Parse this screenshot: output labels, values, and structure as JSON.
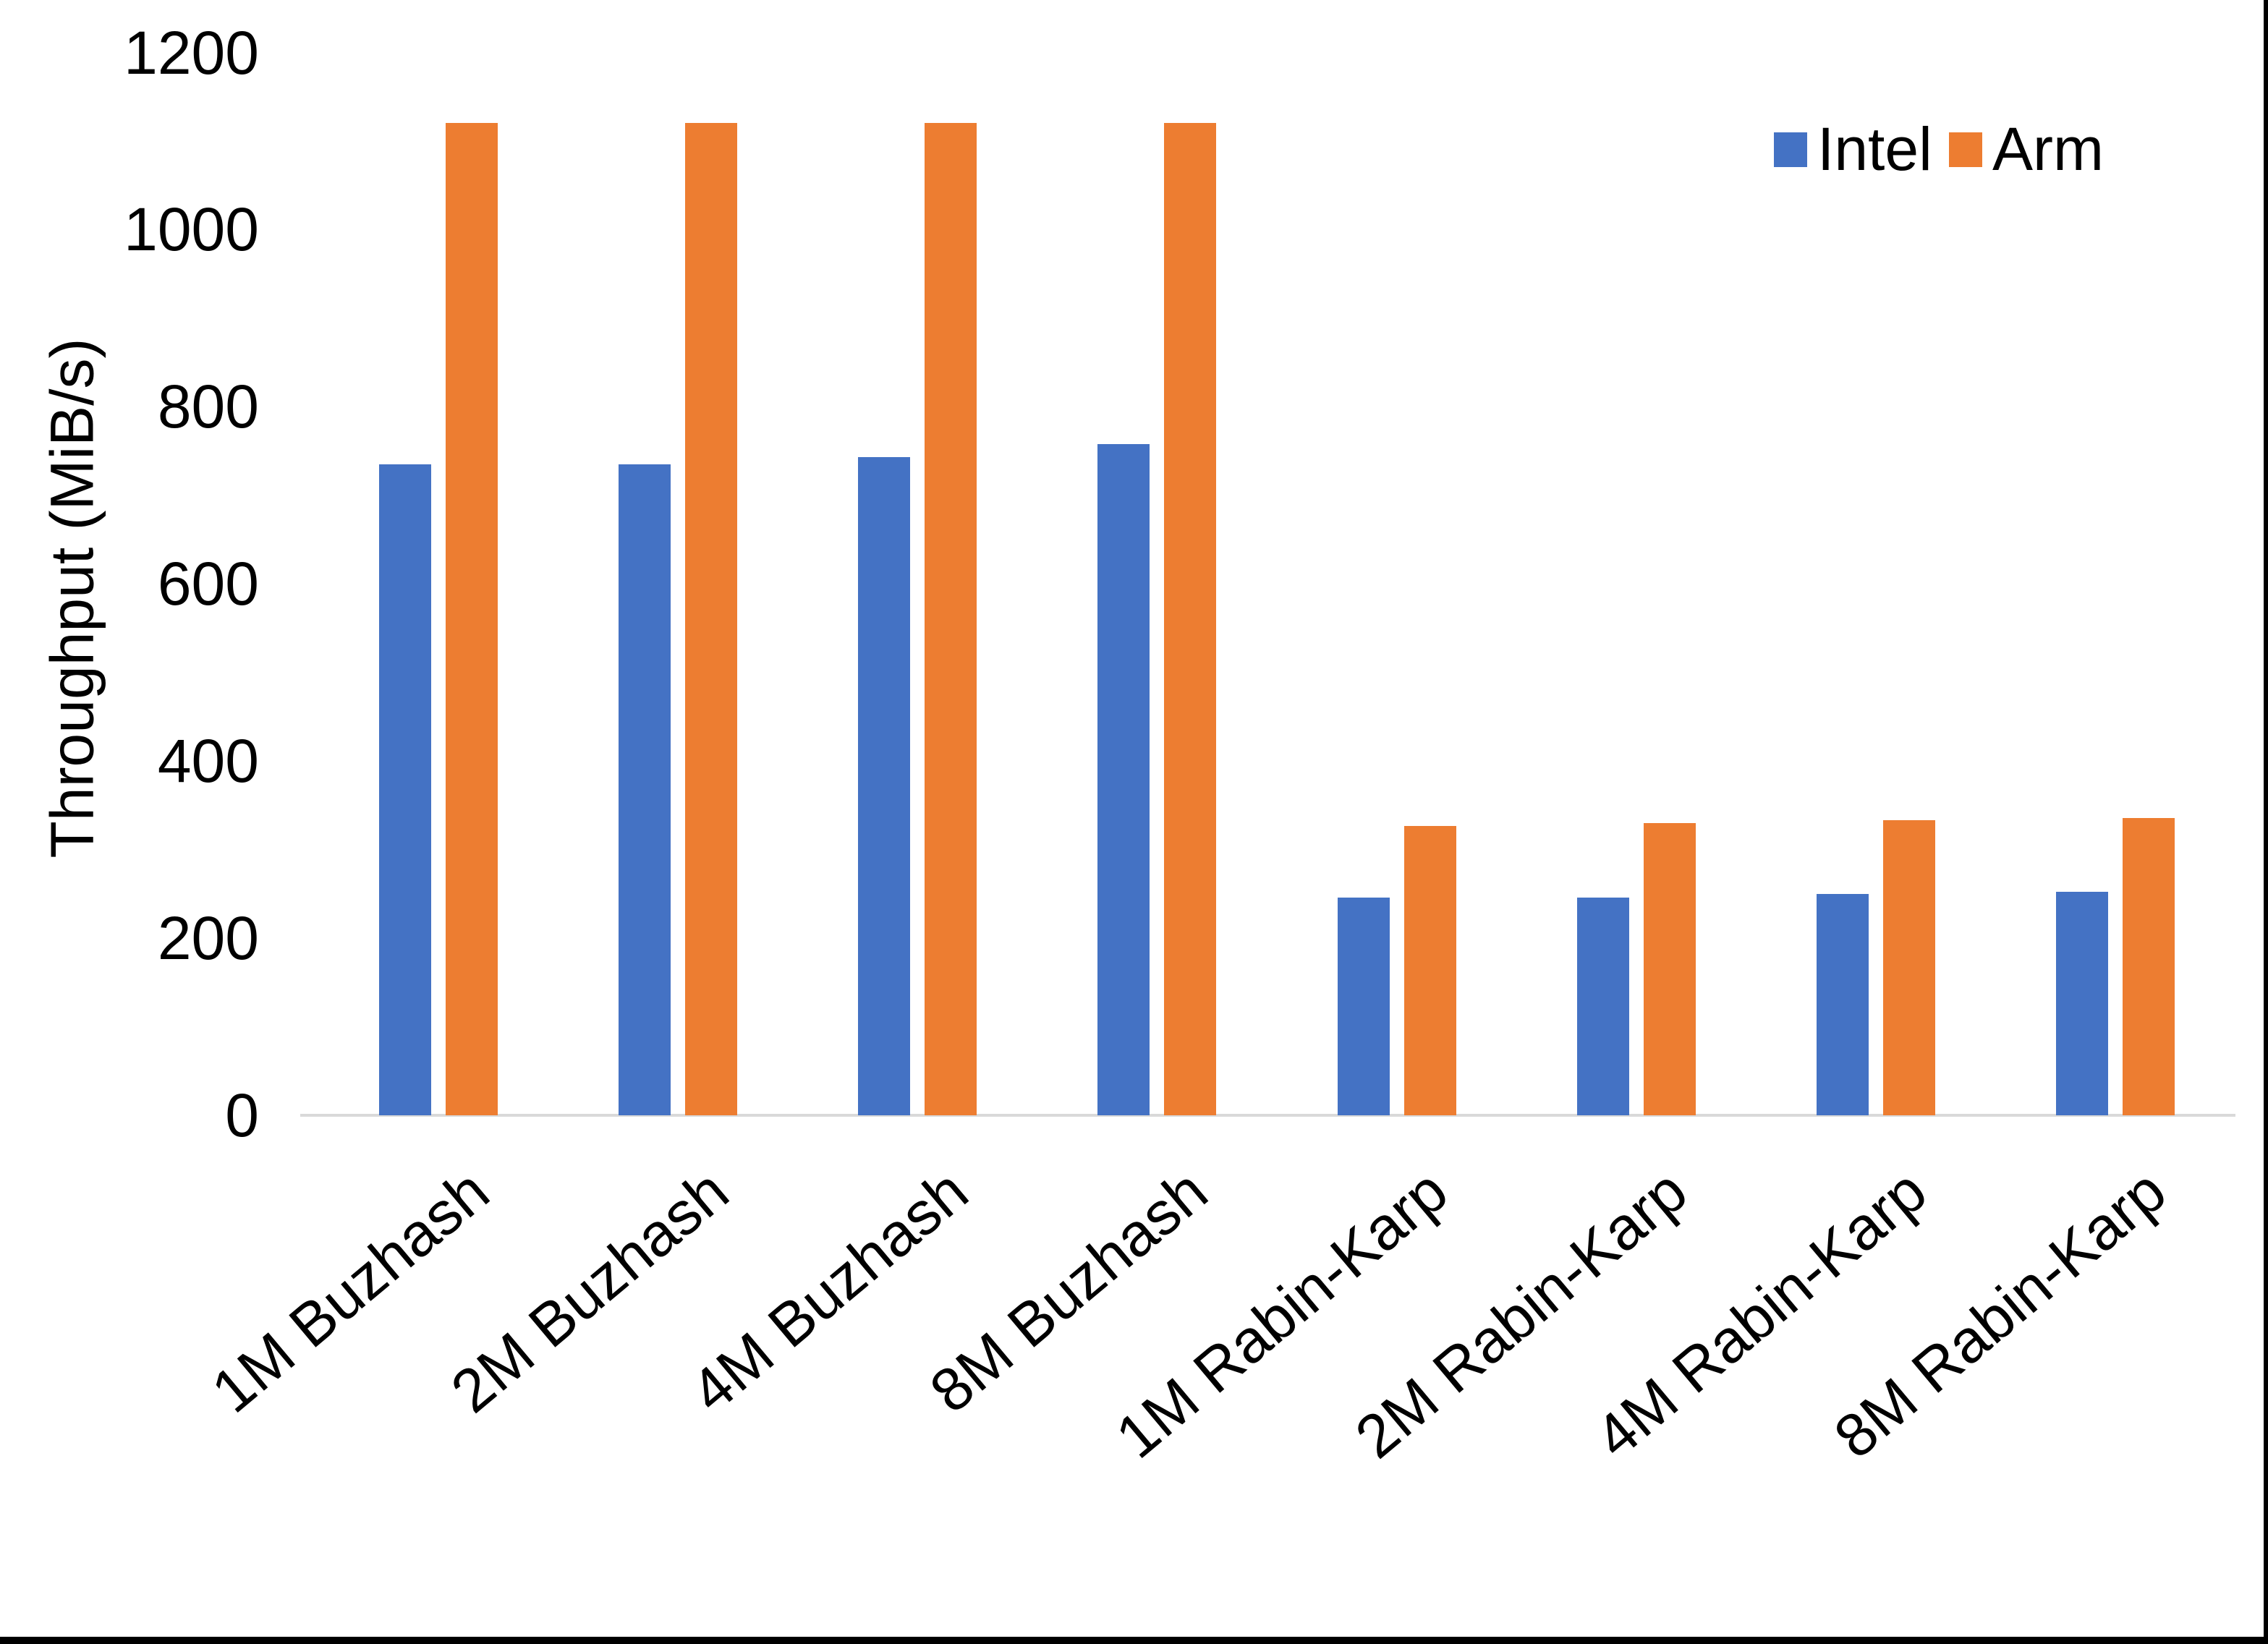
{
  "chart_data": {
    "type": "bar",
    "title": "",
    "xlabel": "",
    "ylabel": "Throughput (MiB/s)",
    "categories": [
      "1M Buzhash",
      "2M Buzhash",
      "4M Buzhash",
      "8M Buzhash",
      "1M Rabin-Karp",
      "2M Rabin-Karp",
      "4M Rabin-Karp",
      "8M Rabin-Karp"
    ],
    "series": [
      {
        "name": "Intel",
        "color": "#4472C4",
        "values": [
          735,
          735,
          743,
          758,
          246,
          246,
          250,
          252
        ]
      },
      {
        "name": "Arm",
        "color": "#ED7D31",
        "values": [
          1120,
          1120,
          1120,
          1120,
          327,
          330,
          333,
          336
        ]
      }
    ],
    "ylim": [
      0,
      1200
    ],
    "yticks": [
      0,
      200,
      400,
      600,
      800,
      1000,
      1200
    ],
    "grid": false,
    "legend_position": "top-right",
    "x_tick_rotation_deg": -40
  },
  "colors": {
    "axis_line": "#d9d9d9",
    "text": "#000000",
    "frame_border": "#000000",
    "background": "#ffffff"
  }
}
